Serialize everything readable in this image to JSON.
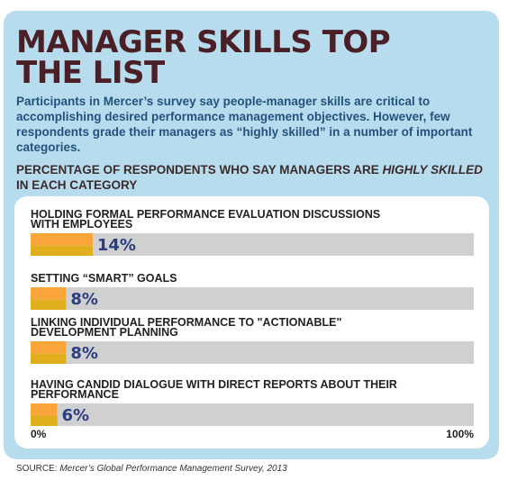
{
  "header": {
    "title_line1": "MANAGER SKILLS TOP",
    "title_line2": "THE LIST",
    "subtitle": "Participants in Mercer’s survey say people-manager skills are critical to accomplishing desired performance management objectives. However, few respondents grade their managers as “highly skilled” in a number of important categories.",
    "chart_heading_prefix": "PERCENTAGE OF RESPONDENTS WHO SAY MANAGERS ARE ",
    "chart_heading_emphasis": "HIGHLY SKILLED",
    "chart_heading_suffix": "IN EACH CATEGORY"
  },
  "footer": {
    "source_label": "SOURCE: ",
    "source_text": "Mercer’s Global Performance Management Survey, 2013"
  },
  "colors": {
    "panel": "#b7dcee",
    "track": "#d0d0d0",
    "bar_top": "#f9a53a",
    "bar_bottom": "#e1ae1d",
    "value_text": "#2c3e80",
    "label_text": "#222222"
  },
  "chart_data": {
    "type": "bar",
    "orientation": "horizontal",
    "categories": [
      [
        "HOLDING FORMAL PERFORMANCE EVALUATION DISCUSSIONS",
        "WITH EMPLOYEES"
      ],
      [
        "SETTING “SMART” GOALS"
      ],
      [
        "LINKING INDIVIDUAL PERFORMANCE TO \"ACTIONABLE\"",
        "DEVELOPMENT PLANNING"
      ],
      [
        "HAVING CANDID DIALOGUE WITH DIRECT REPORTS ABOUT THEIR",
        "PERFORMANCE"
      ]
    ],
    "values": [
      14,
      8,
      8,
      6
    ],
    "value_labels": [
      "14%",
      "8%",
      "8%",
      "6%"
    ],
    "xlim": [
      0,
      100
    ],
    "x_tick_labels": [
      "0%",
      "100%"
    ],
    "grid": false,
    "legend": "none"
  }
}
